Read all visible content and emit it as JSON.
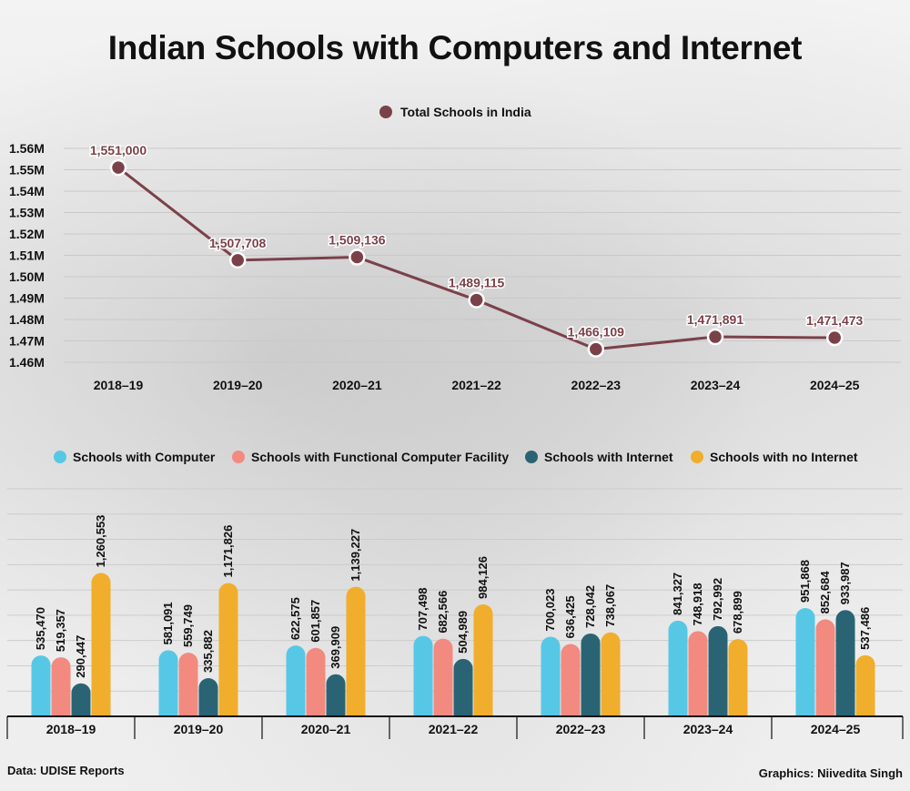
{
  "title": "Indian Schools with Computers and Internet",
  "source": "Data: UDISE Reports",
  "credit": "Graphics: Niivedita Singh",
  "colors": {
    "line": "#7b4149",
    "computer": "#56c8e6",
    "functional": "#f28a80",
    "internet": "#2a6474",
    "no_internet": "#f0ae2c"
  },
  "chart_data": [
    {
      "type": "line",
      "title": "Indian Schools with Computers and Internet",
      "legend": [
        "Total Schools in India"
      ],
      "categories": [
        "2018–19",
        "2019–20",
        "2020–21",
        "2021–22",
        "2022–23",
        "2023–24",
        "2024–25"
      ],
      "values": [
        1551000,
        1507708,
        1509136,
        1489115,
        1466109,
        1471891,
        1471473
      ],
      "value_labels": [
        "1,551,000",
        "1,507,708",
        "1,509,136",
        "1,489,115",
        "1,466,109",
        "1,471,891",
        "1,471,473"
      ],
      "ylim": [
        1460000,
        1560000
      ],
      "yticks": [
        1460000,
        1470000,
        1480000,
        1490000,
        1500000,
        1510000,
        1520000,
        1530000,
        1540000,
        1550000,
        1560000
      ],
      "ytick_labels": [
        "1.46M",
        "1.47M",
        "1.48M",
        "1.49M",
        "1.50M",
        "1.51M",
        "1.52M",
        "1.53M",
        "1.54M",
        "1.55M",
        "1.56M"
      ]
    },
    {
      "type": "bar",
      "categories": [
        "2018–19",
        "2019–20",
        "2020–21",
        "2021–22",
        "2022–23",
        "2023–24",
        "2024–25"
      ],
      "ylim": [
        0,
        2000000
      ],
      "series": [
        {
          "name": "Schools with Computer",
          "values": [
            535470,
            581091,
            622575,
            707498,
            700023,
            841327,
            951868
          ],
          "labels": [
            "535,470",
            "581,091",
            "622,575",
            "707,498",
            "700,023",
            "841,327",
            "951,868"
          ]
        },
        {
          "name": "Schools with Functional Computer Facility",
          "values": [
            519357,
            559749,
            601857,
            682566,
            636425,
            748918,
            852684
          ],
          "labels": [
            "519,357",
            "559,749",
            "601,857",
            "682,566",
            "636,425",
            "748,918",
            "852,684"
          ]
        },
        {
          "name": "Schools with Internet",
          "values": [
            290447,
            335882,
            369909,
            504989,
            728042,
            792992,
            933987
          ],
          "labels": [
            "290,447",
            "335,882",
            "369,909",
            "504,989",
            "728,042",
            "792,992",
            "933,987"
          ]
        },
        {
          "name": "Schools with no Internet",
          "values": [
            1260553,
            1171826,
            1139227,
            984126,
            738067,
            678899,
            537486
          ],
          "labels": [
            "1,260,553",
            "1,171,826",
            "1,139,227",
            "984,126",
            "738,067",
            "678,899",
            "537,486"
          ]
        }
      ]
    }
  ]
}
